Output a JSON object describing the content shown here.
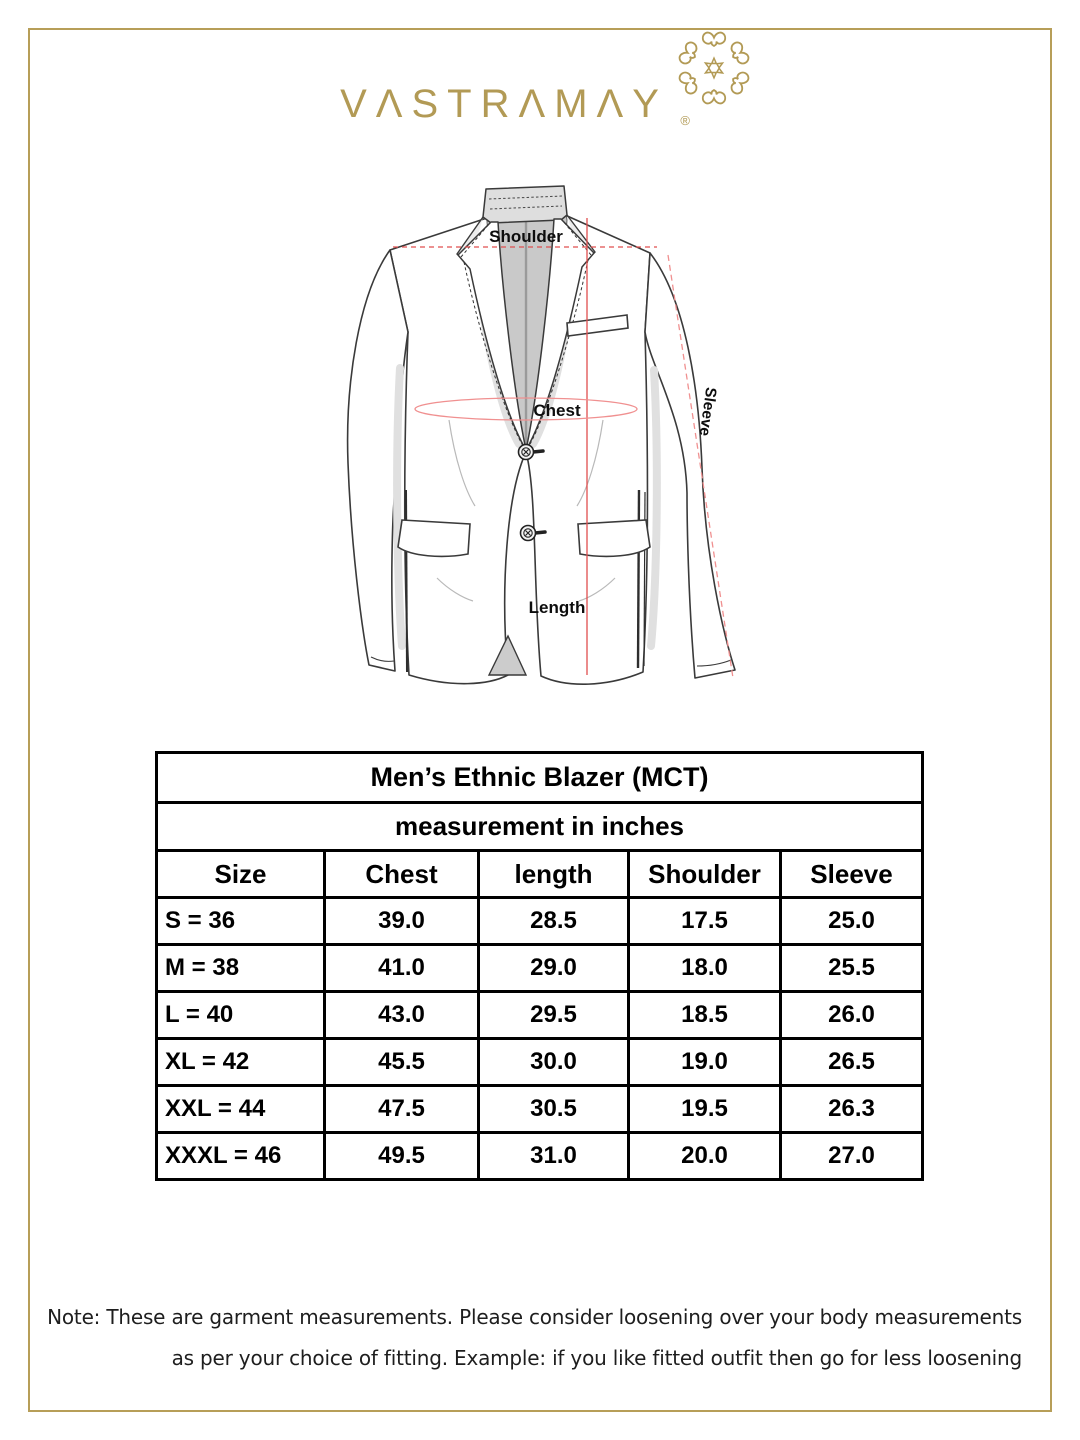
{
  "brand": {
    "wordmark": "VΛSTRΛMΛY",
    "registered": "®"
  },
  "diagram": {
    "labels": {
      "shoulder": "Shoulder",
      "chest": "Chest",
      "sleeve": "Sleeve",
      "length": "Length"
    }
  },
  "size_chart": {
    "title": "Men’s Ethnic Blazer (MCT)",
    "subtitle": "measurement in inches",
    "columns": [
      "Size",
      "Chest",
      "length",
      "Shoulder",
      "Sleeve"
    ],
    "rows": [
      [
        "S = 36",
        "39.0",
        "28.5",
        "17.5",
        "25.0"
      ],
      [
        "M = 38",
        "41.0",
        "29.0",
        "18.0",
        "25.5"
      ],
      [
        "L = 40",
        "43.0",
        "29.5",
        "18.5",
        "26.0"
      ],
      [
        "XL = 42",
        "45.5",
        "30.0",
        "19.0",
        "26.5"
      ],
      [
        "XXL = 44",
        "47.5",
        "30.5",
        "19.5",
        "26.3"
      ],
      [
        "XXXL = 46",
        "49.5",
        "31.0",
        "20.0",
        "27.0"
      ]
    ]
  },
  "note": {
    "line1": "Note: These are garment measurements. Please consider loosening over your body measurements",
    "line2": "as per your choice of fitting. Example: if you like fitted outfit then go for less loosening"
  },
  "colors": {
    "gold": "#b29a55",
    "frame": "#b79e58",
    "red": "#e04f4f",
    "pink": "#f09090",
    "ink": "#1e1e1e",
    "lining": "#c9c9c9"
  }
}
